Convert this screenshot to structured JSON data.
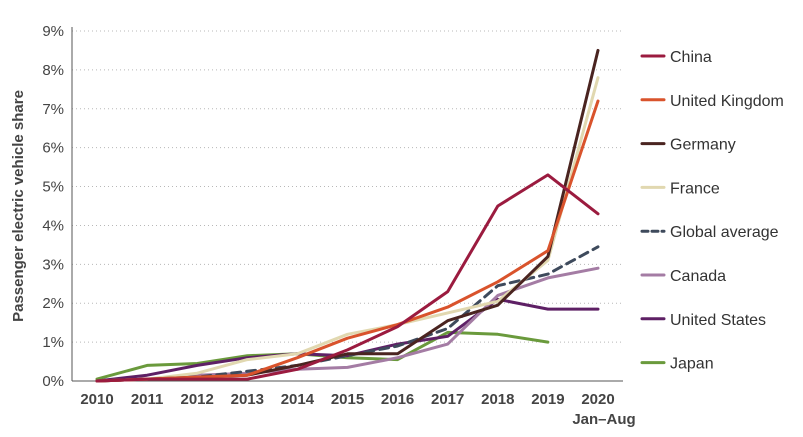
{
  "chart_data": {
    "type": "line",
    "ylabel": "Passenger electric vehicle share",
    "xlabel": "",
    "x": [
      "2010",
      "2011",
      "2012",
      "2013",
      "2014",
      "2015",
      "2016",
      "2017",
      "2018",
      "2019",
      "2020"
    ],
    "x_sublabel": "Jan–Aug",
    "ylim": [
      0,
      9
    ],
    "yticks": [
      0,
      1,
      2,
      3,
      4,
      5,
      6,
      7,
      8,
      9
    ],
    "ytick_labels": [
      "0%",
      "1%",
      "2%",
      "3%",
      "4%",
      "5%",
      "6%",
      "7%",
      "8%",
      "9%"
    ],
    "grid": "horizontal-dotted",
    "legend_position": "right",
    "series": [
      {
        "name": "China",
        "color": "#9b1b3f",
        "dash": false,
        "values": [
          0.0,
          0.05,
          0.05,
          0.05,
          0.3,
          0.8,
          1.4,
          2.3,
          4.5,
          5.3,
          4.3
        ]
      },
      {
        "name": "United Kingdom",
        "color": "#d9532c",
        "dash": false,
        "values": [
          0.0,
          0.05,
          0.1,
          0.15,
          0.6,
          1.1,
          1.45,
          1.9,
          2.55,
          3.35,
          7.2
        ]
      },
      {
        "name": "Germany",
        "color": "#4a2420",
        "dash": false,
        "values": [
          0.0,
          0.05,
          0.1,
          0.15,
          0.4,
          0.7,
          0.7,
          1.55,
          1.95,
          3.2,
          8.5
        ]
      },
      {
        "name": "France",
        "color": "#e1d8b0",
        "dash": false,
        "values": [
          0.0,
          0.05,
          0.2,
          0.55,
          0.7,
          1.2,
          1.45,
          1.75,
          2.05,
          3.1,
          7.8
        ]
      },
      {
        "name": "Global average",
        "color": "#3e4a5c",
        "dash": true,
        "values": [
          0.0,
          0.05,
          0.1,
          0.25,
          0.4,
          0.65,
          0.9,
          1.35,
          2.45,
          2.75,
          3.45
        ]
      },
      {
        "name": "Canada",
        "color": "#a47ca4",
        "dash": false,
        "values": [
          0.0,
          0.05,
          0.15,
          0.2,
          0.3,
          0.35,
          0.6,
          0.95,
          2.2,
          2.65,
          2.9
        ]
      },
      {
        "name": "United States",
        "color": "#5e2065",
        "dash": false,
        "values": [
          0.0,
          0.15,
          0.4,
          0.6,
          0.7,
          0.65,
          0.95,
          1.15,
          2.1,
          1.85,
          1.85
        ]
      },
      {
        "name": "Japan",
        "color": "#6a9a3c",
        "dash": false,
        "values": [
          0.05,
          0.4,
          0.45,
          0.65,
          0.7,
          0.6,
          0.55,
          1.25,
          1.2,
          1.0,
          null
        ]
      }
    ]
  }
}
